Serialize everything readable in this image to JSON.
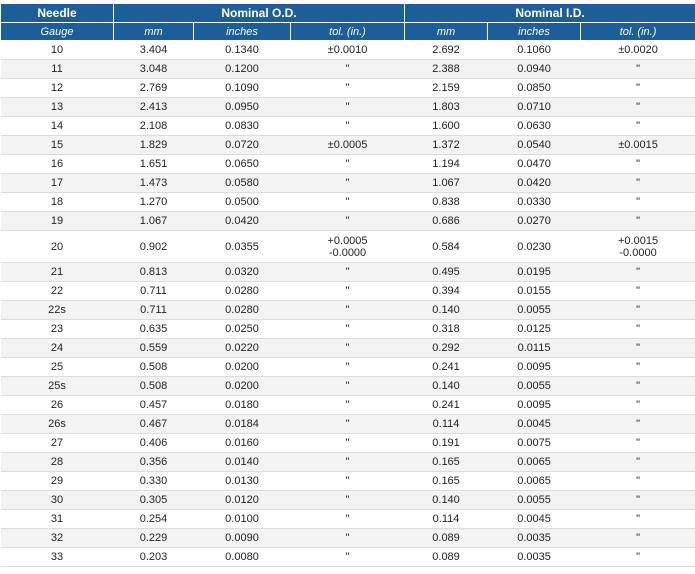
{
  "table": {
    "header": [
      "Needle",
      "Nominal O.D.",
      "Nominal I.D."
    ],
    "subheader": [
      "Gauge",
      "mm",
      "inches",
      "tol. (in.)",
      "mm",
      "inches",
      "tol. (in.)"
    ],
    "rows": [
      [
        "10",
        "3.404",
        "0.1340",
        "±0.0010",
        "2.692",
        "0.1060",
        "±0.0020"
      ],
      [
        "11",
        "3.048",
        "0.1200",
        "\"",
        "2.388",
        "0.0940",
        "\""
      ],
      [
        "12",
        "2.769",
        "0.1090",
        "\"",
        "2.159",
        "0.0850",
        "\""
      ],
      [
        "13",
        "2.413",
        "0.0950",
        "\"",
        "1.803",
        "0.0710",
        "\""
      ],
      [
        "14",
        "2.108",
        "0.0830",
        "\"",
        "1.600",
        "0.0630",
        "\""
      ],
      [
        "15",
        "1.829",
        "0.0720",
        "±0.0005",
        "1.372",
        "0.0540",
        "±0.0015"
      ],
      [
        "16",
        "1.651",
        "0.0650",
        "\"",
        "1.194",
        "0.0470",
        "\""
      ],
      [
        "17",
        "1.473",
        "0.0580",
        "\"",
        "1.067",
        "0.0420",
        "\""
      ],
      [
        "18",
        "1.270",
        "0.0500",
        "\"",
        "0.838",
        "0.0330",
        "\""
      ],
      [
        "19",
        "1.067",
        "0.0420",
        "\"",
        "0.686",
        "0.0270",
        "\""
      ],
      [
        "20",
        "0.902",
        "0.0355",
        "+0.0005\n-0.0000",
        "0.584",
        "0.0230",
        "+0.0015\n-0.0000"
      ],
      [
        "21",
        "0.813",
        "0.0320",
        "\"",
        "0.495",
        "0.0195",
        "\""
      ],
      [
        "22",
        "0.711",
        "0.0280",
        "\"",
        "0.394",
        "0.0155",
        "\""
      ],
      [
        "22s",
        "0.711",
        "0.0280",
        "\"",
        "0.140",
        "0.0055",
        "\""
      ],
      [
        "23",
        "0.635",
        "0.0250",
        "\"",
        "0.318",
        "0.0125",
        "\""
      ],
      [
        "24",
        "0.559",
        "0.0220",
        "\"",
        "0.292",
        "0.0115",
        "\""
      ],
      [
        "25",
        "0.508",
        "0.0200",
        "\"",
        "0.241",
        "0.0095",
        "\""
      ],
      [
        "25s",
        "0.508",
        "0.0200",
        "\"",
        "0.140",
        "0.0055",
        "\""
      ],
      [
        "26",
        "0.457",
        "0.0180",
        "\"",
        "0.241",
        "0.0095",
        "\""
      ],
      [
        "26s",
        "0.467",
        "0.0184",
        "\"",
        "0.114",
        "0.0045",
        "\""
      ],
      [
        "27",
        "0.406",
        "0.0160",
        "\"",
        "0.191",
        "0.0075",
        "\""
      ],
      [
        "28",
        "0.356",
        "0.0140",
        "\"",
        "0.165",
        "0.0065",
        "\""
      ],
      [
        "29",
        "0.330",
        "0.0130",
        "\"",
        "0.165",
        "0.0065",
        "\""
      ],
      [
        "30",
        "0.305",
        "0.0120",
        "\"",
        "0.140",
        "0.0055",
        "\""
      ],
      [
        "31",
        "0.254",
        "0.0100",
        "\"",
        "0.114",
        "0.0045",
        "\""
      ],
      [
        "32",
        "0.229",
        "0.0090",
        "\"",
        "0.089",
        "0.0035",
        "\""
      ],
      [
        "33",
        "0.203",
        "0.0080",
        "\"",
        "0.089",
        "0.0035",
        "\""
      ]
    ]
  }
}
